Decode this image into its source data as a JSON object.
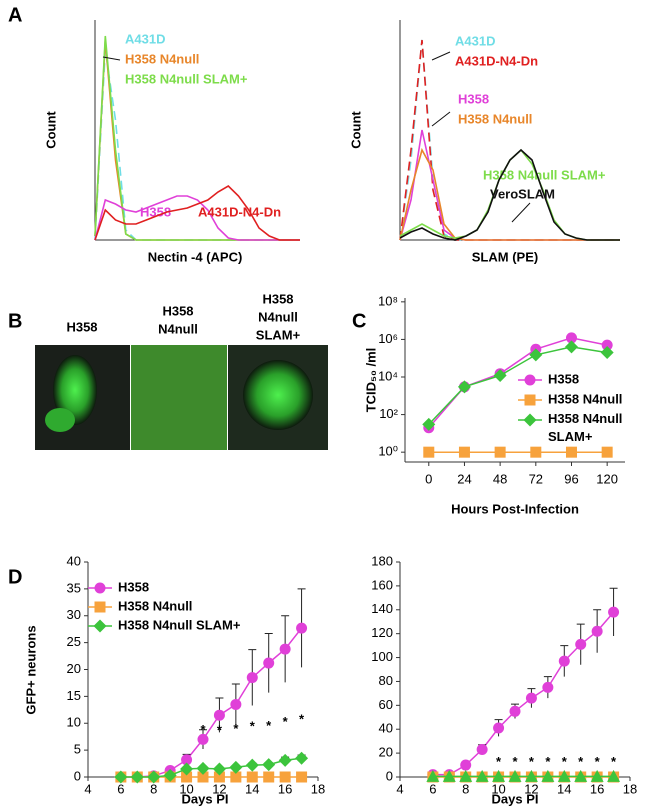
{
  "chart_data": [
    {
      "type": "line",
      "panel": "A",
      "ylabel": "Count",
      "xlabel": "Nectin -4 (APC)",
      "xlim": [
        0,
        100
      ],
      "ylim": [
        0,
        110
      ],
      "x": [
        0,
        5,
        10,
        15,
        20,
        25,
        30,
        35,
        40,
        45,
        50,
        55,
        60,
        65,
        70,
        75,
        80,
        85,
        90,
        95,
        100
      ],
      "series": [
        {
          "name": "A431D",
          "color": "#6fdde6",
          "dashed": true,
          "values": [
            0,
            95,
            60,
            5,
            0,
            0,
            0,
            0,
            0,
            0,
            0,
            0,
            0,
            0,
            0,
            0,
            0,
            0,
            0,
            0,
            0
          ]
        },
        {
          "name": "H358 N4null",
          "color": "#e8862a",
          "values": [
            2,
            100,
            40,
            3,
            0,
            0,
            0,
            0,
            0,
            0,
            0,
            0,
            0,
            0,
            0,
            0,
            0,
            0,
            0,
            0,
            0
          ]
        },
        {
          "name": "H358 N4null SLAM+",
          "color": "#7ddc4a",
          "values": [
            2,
            102,
            45,
            3,
            0,
            0,
            0,
            0,
            0,
            0,
            0,
            0,
            0,
            0,
            0,
            0,
            0,
            0,
            0,
            0,
            0
          ]
        },
        {
          "name": "H358",
          "color": "#e040d8",
          "values": [
            0,
            20,
            18,
            15,
            14,
            16,
            18,
            20,
            22,
            22,
            20,
            15,
            6,
            1,
            0,
            0,
            0,
            0,
            0,
            0,
            0
          ]
        },
        {
          "name": "A431D-N4-Dn",
          "color": "#e02020",
          "values": [
            0,
            15,
            10,
            8,
            8,
            10,
            12,
            14,
            15,
            16,
            18,
            20,
            24,
            27,
            22,
            15,
            6,
            2,
            0,
            0,
            0
          ]
        }
      ]
    },
    {
      "type": "line",
      "ylabel": "Count",
      "xlabel": "SLAM (PE)",
      "xlim": [
        0,
        100
      ],
      "ylim": [
        0,
        110
      ],
      "x": [
        0,
        5,
        10,
        15,
        20,
        25,
        30,
        35,
        40,
        45,
        50,
        55,
        60,
        65,
        70,
        75,
        80,
        85,
        90,
        95,
        100
      ],
      "series": [
        {
          "name": "A431D",
          "color": "#6fdde6",
          "dashed": true,
          "values": [
            0,
            40,
            100,
            30,
            3,
            0,
            0,
            0,
            0,
            0,
            0,
            0,
            0,
            0,
            0,
            0,
            0,
            0,
            0,
            0,
            0
          ]
        },
        {
          "name": "A431D-N4-Dn",
          "color": "#e02020",
          "dashed": true,
          "values": [
            0,
            45,
            100,
            25,
            2,
            0,
            0,
            0,
            0,
            0,
            0,
            0,
            0,
            0,
            0,
            0,
            0,
            0,
            0,
            0,
            0
          ]
        },
        {
          "name": "H358",
          "color": "#e040d8",
          "values": [
            0,
            20,
            55,
            30,
            5,
            1,
            0,
            0,
            0,
            0,
            0,
            0,
            0,
            0,
            0,
            0,
            0,
            0,
            0,
            0,
            0
          ]
        },
        {
          "name": "H358 N4null",
          "color": "#e8862a",
          "values": [
            0,
            25,
            45,
            35,
            8,
            1,
            0,
            0,
            0,
            0,
            0,
            0,
            0,
            0,
            0,
            0,
            0,
            0,
            0,
            0,
            0
          ]
        },
        {
          "name": "H358 N4null SLAM+",
          "color": "#7ddc4a",
          "values": [
            2,
            5,
            8,
            5,
            2,
            1,
            2,
            5,
            15,
            30,
            40,
            45,
            38,
            25,
            10,
            3,
            1,
            0,
            0,
            0,
            0
          ]
        },
        {
          "name": "VeroSLAM",
          "color": "#111111",
          "values": [
            1,
            4,
            6,
            3,
            1,
            0,
            2,
            5,
            14,
            30,
            40,
            45,
            40,
            24,
            9,
            3,
            1,
            0,
            0,
            0,
            0
          ]
        }
      ]
    },
    {
      "type": "line",
      "panel": "C",
      "log_y": true,
      "ylabel": "TCID₅₀ /ml",
      "xlabel": "Hours Post-Infection",
      "legend": true,
      "xlim": [
        -16,
        132
      ],
      "ylim": [
        0.3,
        160000000
      ],
      "xticks": [
        0,
        24,
        48,
        72,
        96,
        120
      ],
      "yticks": [
        {
          "value": 1,
          "label": "10⁰"
        },
        {
          "value": 100,
          "label": "10²"
        },
        {
          "value": 10000,
          "label": "10⁴"
        },
        {
          "value": 1000000,
          "label": "10⁶"
        },
        {
          "value": 100000000,
          "label": "10⁸"
        }
      ],
      "x": [
        0,
        24,
        48,
        72,
        96,
        120
      ],
      "series": [
        {
          "name": "H358",
          "color": "#e040d8",
          "marker": "circle",
          "values": [
            20,
            3000,
            15000,
            300000,
            1200000,
            500000
          ]
        },
        {
          "name": "H358 N4null",
          "color": "#f7a23c",
          "marker": "square",
          "values": [
            1,
            1,
            1,
            1,
            1,
            1
          ]
        },
        {
          "name": "H358 N4null SLAM+",
          "color": "#3cc43c",
          "marker": "diamond",
          "values": [
            30,
            3000,
            12000,
            150000,
            400000,
            200000
          ]
        }
      ]
    },
    {
      "type": "line",
      "panel": "D",
      "ylabel": "GFP+ neurons",
      "xlabel": "Days PI",
      "legend": true,
      "xlim": [
        4,
        18
      ],
      "ylim": [
        0,
        40
      ],
      "xticks": [
        4,
        6,
        8,
        10,
        12,
        14,
        16,
        18
      ],
      "yticks": [
        0,
        5,
        10,
        15,
        20,
        25,
        30,
        35,
        40
      ],
      "x": [
        6,
        7,
        8,
        9,
        10,
        11,
        12,
        13,
        14,
        15,
        16,
        17
      ],
      "series": [
        {
          "name": "H358",
          "color": "#e040d8",
          "marker": "circle",
          "values": [
            0,
            0,
            0.2,
            1.2,
            3.2,
            7,
            11.5,
            13.5,
            18.5,
            21.2,
            23.8,
            27.7
          ],
          "errors": [
            0,
            0,
            0.2,
            0.5,
            1,
            1.8,
            3.2,
            3.8,
            5.2,
            5.5,
            6.2,
            7.3
          ]
        },
        {
          "name": "H358 N4null",
          "color": "#f7a23c",
          "marker": "square",
          "values": [
            0,
            0,
            0,
            0,
            0,
            0,
            0,
            0,
            0,
            0,
            0,
            0
          ]
        },
        {
          "name": "H358 N4null SLAM+",
          "color": "#3cc43c",
          "marker": "diamond",
          "values": [
            0,
            0,
            0,
            0.3,
            1.5,
            1.6,
            1.5,
            1.8,
            2.2,
            2.3,
            3.1,
            3.5
          ],
          "errors": [
            0,
            0,
            0,
            0.2,
            0.3,
            0.3,
            0.3,
            0.3,
            0.4,
            0.4,
            0.6,
            0.6
          ]
        }
      ],
      "significance": {
        "label": "*",
        "x": [
          11,
          12,
          13,
          14,
          15,
          16,
          17
        ]
      }
    },
    {
      "type": "line",
      "xlabel": "Days PI",
      "xlim": [
        4,
        18
      ],
      "ylim": [
        0,
        180
      ],
      "xticks": [
        4,
        6,
        8,
        10,
        12,
        14,
        16,
        18
      ],
      "yticks": [
        0,
        20,
        40,
        60,
        80,
        100,
        120,
        140,
        160,
        180
      ],
      "x": [
        6,
        7,
        8,
        9,
        10,
        11,
        12,
        13,
        14,
        15,
        16,
        17
      ],
      "series": [
        {
          "name": "H358",
          "color": "#e040d8",
          "marker": "circle",
          "values": [
            2,
            2,
            10,
            23,
            41,
            55,
            66,
            75,
            97,
            111,
            122,
            138
          ],
          "errors": [
            1,
            1,
            2,
            4,
            7,
            6,
            8,
            9,
            13,
            17,
            18,
            20
          ]
        },
        {
          "name": "H358 N4null",
          "color": "#f7a23c",
          "marker": "square",
          "values": [
            0,
            0,
            0,
            0,
            0,
            0,
            0,
            0,
            0,
            0,
            0,
            0
          ]
        },
        {
          "name": "H358 N4null SLAM+",
          "color": "#3cc43c",
          "marker": "triangle",
          "values": [
            0.5,
            0.5,
            0.5,
            0.5,
            0.5,
            0.5,
            0.5,
            0.5,
            0.5,
            0.5,
            0.5,
            0.5
          ]
        }
      ],
      "significance": {
        "label": "*",
        "x": [
          10,
          11,
          12,
          13,
          14,
          15,
          16,
          17
        ]
      }
    }
  ],
  "figure_b": {
    "panel": "B",
    "labels": [
      [
        "H358"
      ],
      [
        "H358",
        "N4null"
      ],
      [
        "H358",
        "N4null",
        "SLAM+"
      ]
    ]
  }
}
